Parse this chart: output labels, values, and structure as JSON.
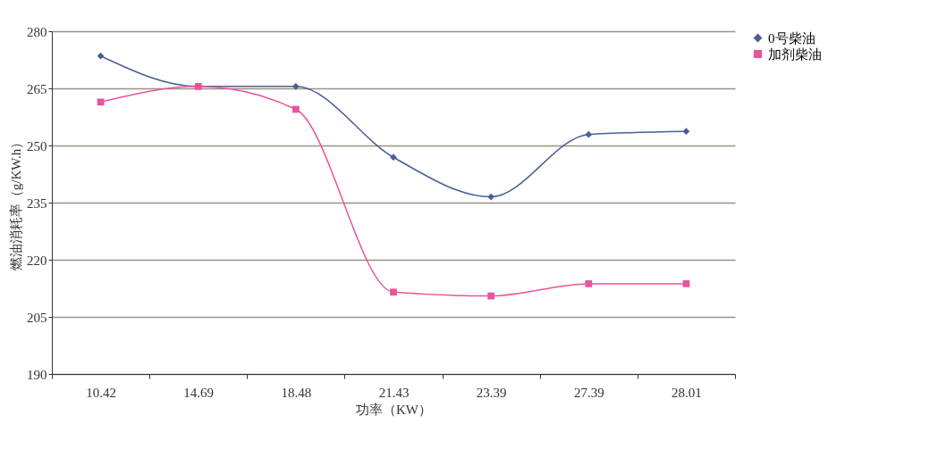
{
  "chart_data": {
    "type": "line",
    "xlabel": "功率（KW）",
    "ylabel": "燃油消耗率（g/KW.h）",
    "categories": [
      "10.42",
      "14.69",
      "18.48",
      "21.43",
      "23.39",
      "27.39",
      "28.01"
    ],
    "series": [
      {
        "name": "0号柴油",
        "color": "#4a5f95",
        "marker": "diamond",
        "values": [
          273.5,
          265.5,
          265.5,
          246.9,
          236.5,
          252.9,
          253.7
        ]
      },
      {
        "name": "加剂柴油",
        "color": "#e8559a",
        "marker": "square",
        "values": [
          261.4,
          265.5,
          259.5,
          211.5,
          210.5,
          213.7,
          213.7
        ]
      }
    ],
    "ylim": [
      190,
      280
    ],
    "yticks": [
      190,
      205,
      220,
      235,
      250,
      265,
      280
    ],
    "grid": "y",
    "legend": "right"
  }
}
